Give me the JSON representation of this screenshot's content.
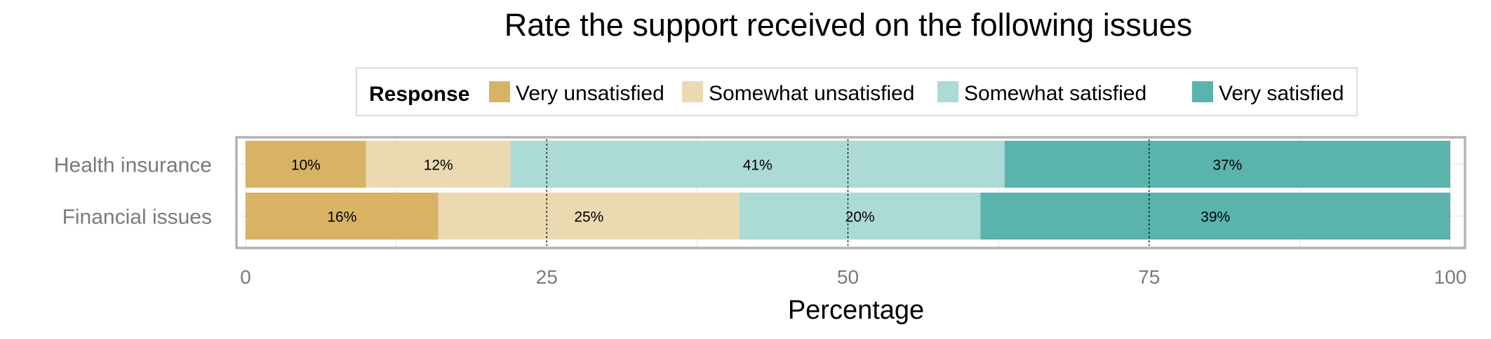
{
  "chart_data": {
    "type": "bar",
    "orientation": "horizontal",
    "stacked": true,
    "title": "Rate the support received on the following issues",
    "xlabel": "Percentage",
    "ylabel": "",
    "xlim": [
      0,
      100
    ],
    "xticks": [
      0,
      25,
      50,
      75,
      100
    ],
    "grid": true,
    "legend_title": "Response",
    "legend_position": "top",
    "categories": [
      "Health insurance",
      "Financial issues"
    ],
    "series": [
      {
        "name": "Very unsatisfied",
        "color": "#d8b365",
        "values": [
          10,
          16
        ],
        "labels": [
          "10%",
          "16%"
        ]
      },
      {
        "name": "Somewhat unsatisfied",
        "color": "#ebd9b2",
        "values": [
          12,
          25
        ],
        "labels": [
          "12%",
          "25%"
        ]
      },
      {
        "name": "Somewhat satisfied",
        "color": "#acdad5",
        "values": [
          41,
          20
        ],
        "labels": [
          "41%",
          "20%"
        ]
      },
      {
        "name": "Very satisfied",
        "color": "#5ab4ac",
        "values": [
          37,
          39
        ],
        "labels": [
          "37%",
          "39%"
        ]
      }
    ]
  }
}
